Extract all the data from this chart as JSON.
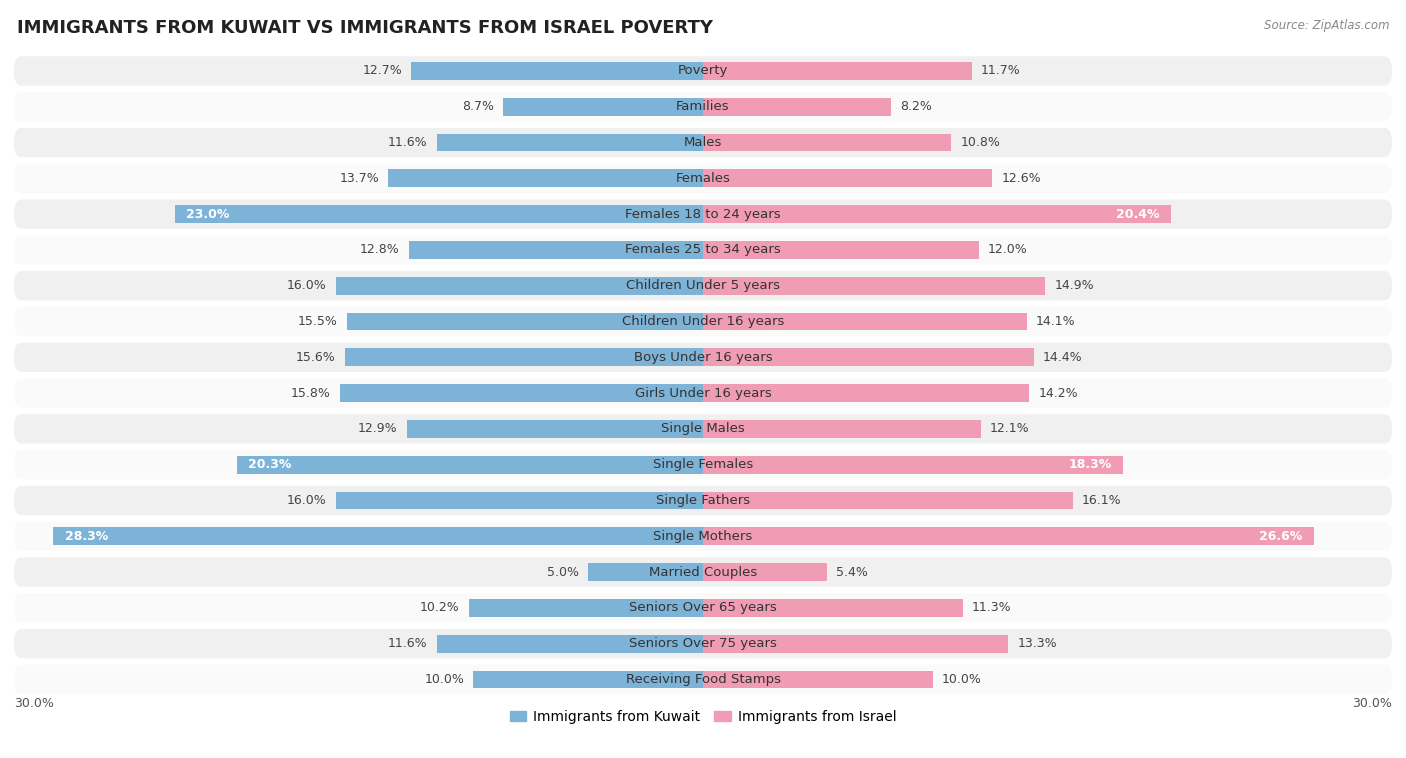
{
  "title": "IMMIGRANTS FROM KUWAIT VS IMMIGRANTS FROM ISRAEL POVERTY",
  "source": "Source: ZipAtlas.com",
  "categories": [
    "Poverty",
    "Families",
    "Males",
    "Females",
    "Females 18 to 24 years",
    "Females 25 to 34 years",
    "Children Under 5 years",
    "Children Under 16 years",
    "Boys Under 16 years",
    "Girls Under 16 years",
    "Single Males",
    "Single Females",
    "Single Fathers",
    "Single Mothers",
    "Married Couples",
    "Seniors Over 65 years",
    "Seniors Over 75 years",
    "Receiving Food Stamps"
  ],
  "kuwait_values": [
    12.7,
    8.7,
    11.6,
    13.7,
    23.0,
    12.8,
    16.0,
    15.5,
    15.6,
    15.8,
    12.9,
    20.3,
    16.0,
    28.3,
    5.0,
    10.2,
    11.6,
    10.0
  ],
  "israel_values": [
    11.7,
    8.2,
    10.8,
    12.6,
    20.4,
    12.0,
    14.9,
    14.1,
    14.4,
    14.2,
    12.1,
    18.3,
    16.1,
    26.6,
    5.4,
    11.3,
    13.3,
    10.0
  ],
  "kuwait_color": "#7eb3d8",
  "israel_color": "#f09cb5",
  "background_color": "#ffffff",
  "row_colors": [
    "#f0f0f0",
    "#fafafa"
  ],
  "xlim": 30.0,
  "bar_height": 0.5,
  "label_fontsize": 9.5,
  "title_fontsize": 13,
  "legend_fontsize": 10,
  "value_fontsize": 9,
  "high_threshold": 18.0
}
